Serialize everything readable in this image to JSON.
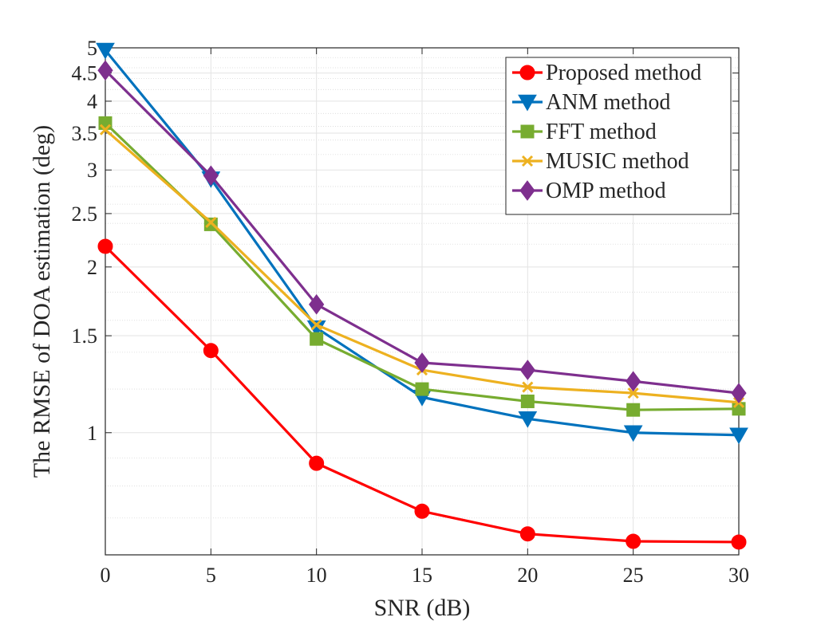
{
  "chart_data": {
    "type": "line",
    "title": "",
    "xlabel": "SNR (dB)",
    "ylabel": "The RMSE of DOA estimation (deg)",
    "x": [
      0,
      5,
      10,
      15,
      20,
      25,
      30
    ],
    "xlim": [
      0,
      30
    ],
    "ylim": [
      0.6,
      5
    ],
    "yscale": "log",
    "xticks": [
      0,
      5,
      10,
      15,
      20,
      25,
      30
    ],
    "yticks": [
      1,
      1.5,
      2,
      2.5,
      3,
      3.5,
      4,
      4.5,
      5
    ],
    "grid": true,
    "legend_position": "top-right",
    "series": [
      {
        "name": "Proposed method",
        "color": "#ff0000",
        "marker": "circle",
        "values": [
          2.18,
          1.41,
          0.88,
          0.72,
          0.655,
          0.635,
          0.633
        ]
      },
      {
        "name": "ANM method",
        "color": "#0072bd",
        "marker": "triangle-down",
        "values": [
          4.95,
          2.89,
          1.55,
          1.16,
          1.06,
          1.0,
          0.99
        ]
      },
      {
        "name": "FFT method",
        "color": "#77ac30",
        "marker": "square",
        "values": [
          3.65,
          2.39,
          1.48,
          1.2,
          1.14,
          1.1,
          1.105
        ]
      },
      {
        "name": "MUSIC method",
        "color": "#edb120",
        "marker": "x",
        "values": [
          3.55,
          2.41,
          1.57,
          1.3,
          1.21,
          1.18,
          1.135
        ]
      },
      {
        "name": "OMP method",
        "color": "#7e2f8e",
        "marker": "diamond",
        "values": [
          4.55,
          2.93,
          1.71,
          1.34,
          1.3,
          1.24,
          1.18
        ]
      }
    ]
  }
}
